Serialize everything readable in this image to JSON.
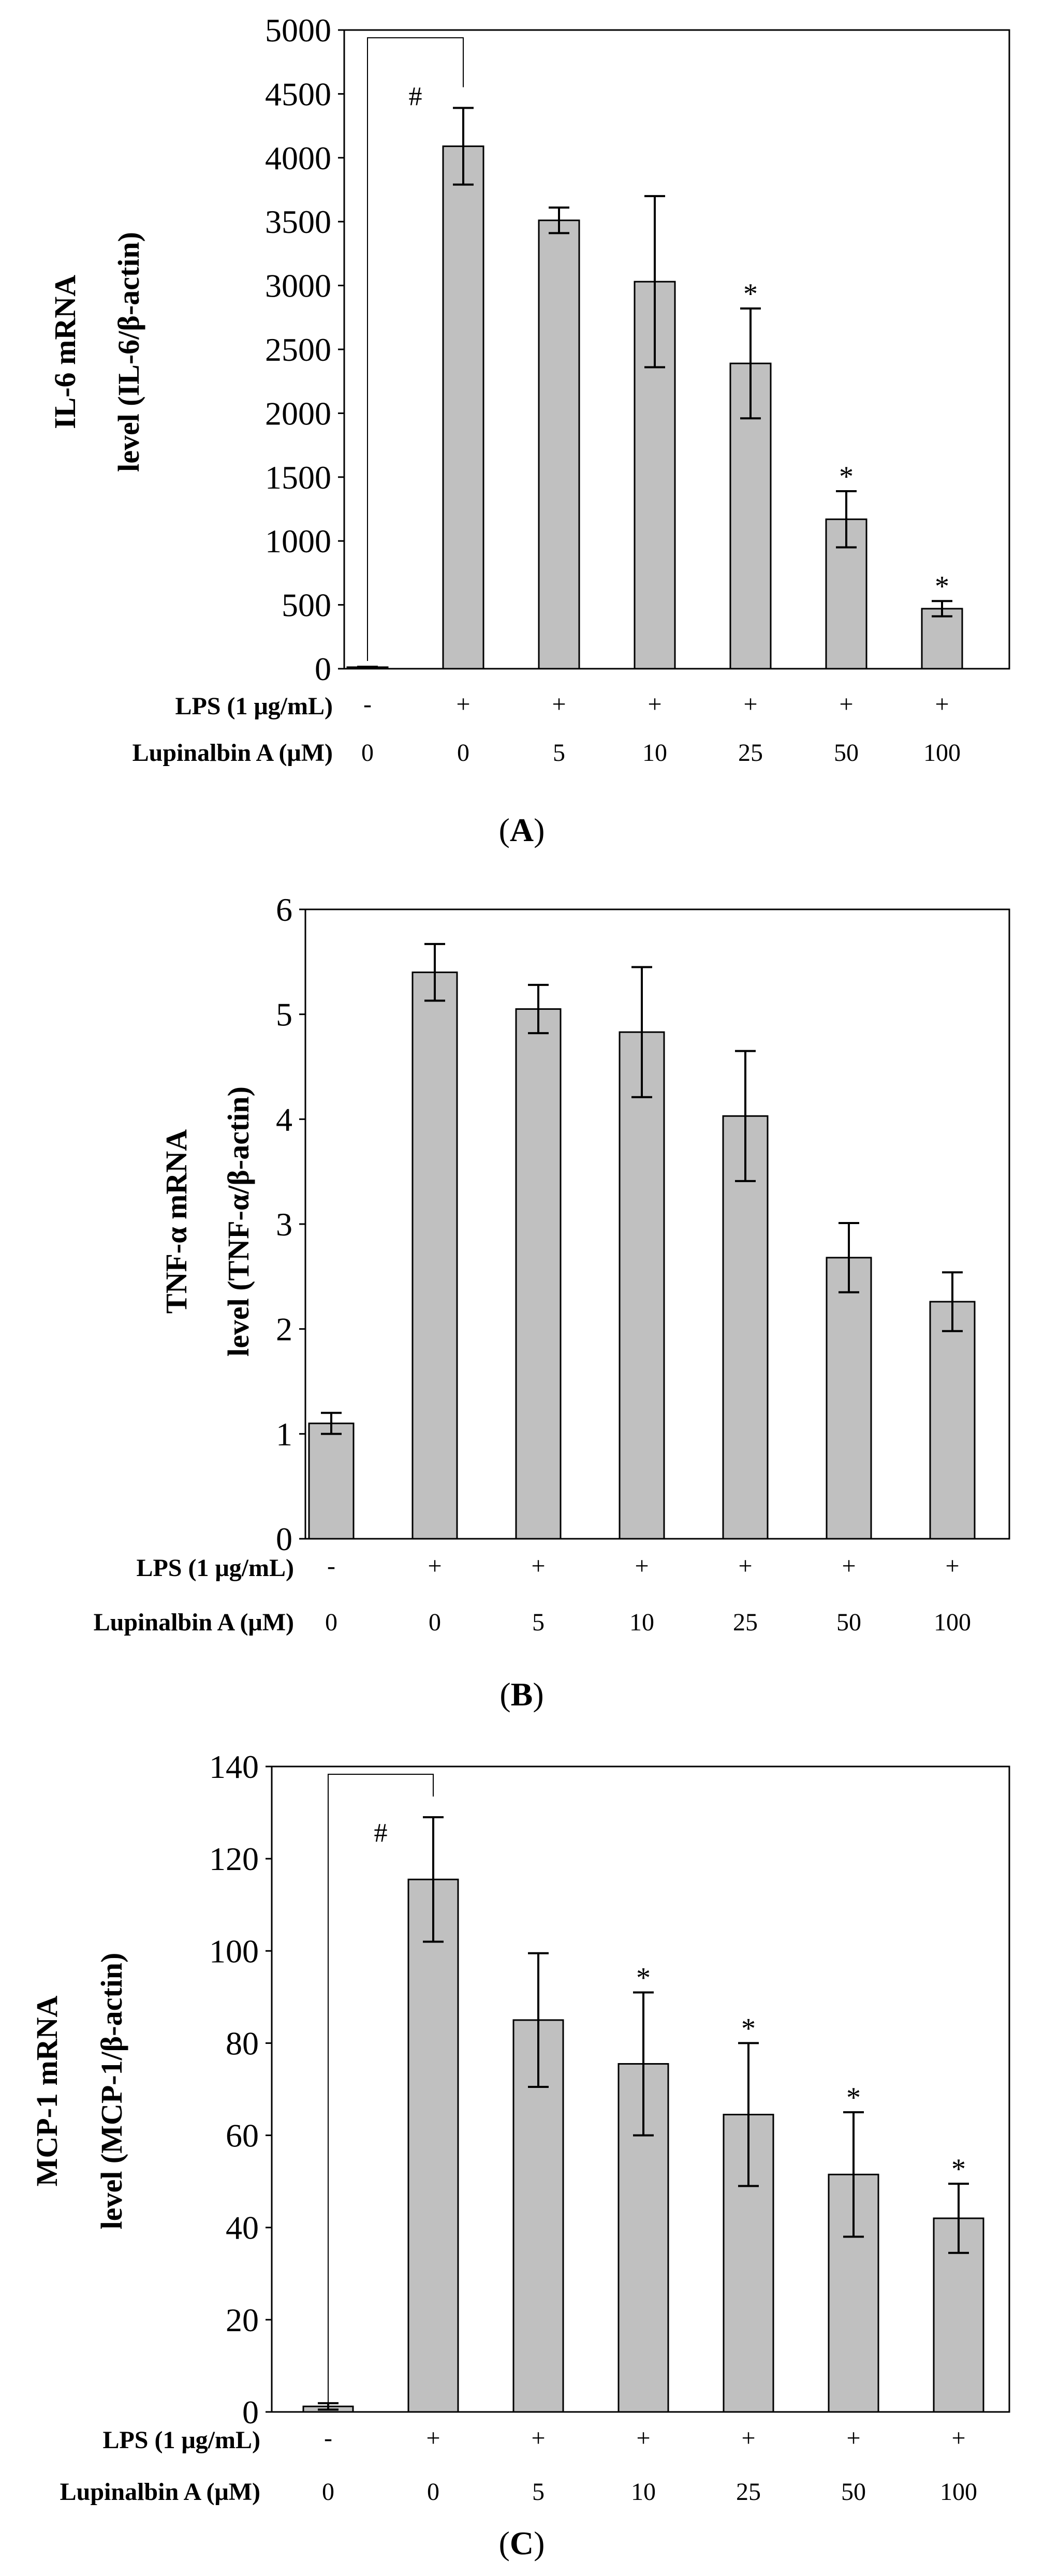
{
  "figure": {
    "conditions": {
      "lps_label": "LPS (1 μg/mL)",
      "lupinalbin_label": "Lupinalbin A (μM)",
      "lps_values": [
        "-",
        "+",
        "+",
        "+",
        "+",
        "+",
        "+"
      ],
      "lupinalbin_values": [
        "0",
        "0",
        "5",
        "10",
        "25",
        "50",
        "100"
      ]
    }
  },
  "chart_data": [
    {
      "type": "bar",
      "panel": "A",
      "caption": {
        "open": "(",
        "letter": "A",
        "close": ")"
      },
      "ylabel_line1": "IL-6 mRNA",
      "ylabel_line2": "level (IL-6/β-actin)",
      "ylim": [
        0,
        5000
      ],
      "yticks": [
        "0",
        "500",
        "1000",
        "1500",
        "2000",
        "2500",
        "3000",
        "3500",
        "4000",
        "4500",
        "5000"
      ],
      "ytick_values": [
        0,
        500,
        1000,
        1500,
        2000,
        2500,
        3000,
        3500,
        4000,
        4500,
        5000
      ],
      "categories": [
        "-/0",
        "+/0",
        "+/5",
        "+/10",
        "+/25",
        "+/50",
        "+/100"
      ],
      "values": [
        10,
        4090,
        3510,
        3030,
        2390,
        1170,
        470
      ],
      "errors": [
        5,
        300,
        100,
        670,
        430,
        220,
        60
      ],
      "annotations": [
        "",
        "",
        "",
        "",
        "*",
        "*",
        "*"
      ],
      "significance_bracket": {
        "from": 0,
        "to": 1,
        "label": "#"
      },
      "bar_color": "#c0c0c0"
    },
    {
      "type": "bar",
      "panel": "B",
      "caption": {
        "open": "(",
        "letter": "B",
        "close": ")"
      },
      "ylabel_line1": "TNF-α mRNA",
      "ylabel_line2": "level (TNF-α/β-actin)",
      "ylim": [
        0,
        6
      ],
      "yticks": [
        "0",
        "1",
        "2",
        "3",
        "4",
        "5",
        "6"
      ],
      "ytick_values": [
        0,
        1,
        2,
        3,
        4,
        5,
        6
      ],
      "categories": [
        "-/0",
        "+/0",
        "+/5",
        "+/10",
        "+/25",
        "+/50",
        "+/100"
      ],
      "values": [
        1.1,
        5.4,
        5.05,
        4.83,
        4.03,
        2.68,
        2.26
      ],
      "errors": [
        0.1,
        0.27,
        0.23,
        0.62,
        0.62,
        0.33,
        0.28
      ],
      "annotations": [
        "",
        "",
        "",
        "",
        "",
        "",
        ""
      ],
      "significance_bracket": null,
      "bar_color": "#c0c0c0"
    },
    {
      "type": "bar",
      "panel": "C",
      "caption": {
        "open": "(",
        "letter": "C",
        "close": ")"
      },
      "ylabel_line1": "MCP-1 mRNA",
      "ylabel_line2": "level (MCP-1/β-actin)",
      "ylim": [
        0,
        140
      ],
      "yticks": [
        "0",
        "20",
        "40",
        "60",
        "80",
        "100",
        "120",
        "140"
      ],
      "ytick_values": [
        0,
        20,
        40,
        60,
        80,
        100,
        120,
        140
      ],
      "categories": [
        "-/0",
        "+/0",
        "+/5",
        "+/10",
        "+/25",
        "+/50",
        "+/100"
      ],
      "values": [
        1.2,
        115.5,
        85,
        75.5,
        64.5,
        51.5,
        42
      ],
      "errors": [
        0.7,
        13.5,
        14.5,
        15.5,
        15.5,
        13.5,
        7.5
      ],
      "annotations": [
        "",
        "",
        "",
        "*",
        "*",
        "*",
        "*"
      ],
      "significance_bracket": {
        "from": 0,
        "to": 1,
        "label": "#"
      },
      "bar_color": "#c0c0c0"
    }
  ]
}
